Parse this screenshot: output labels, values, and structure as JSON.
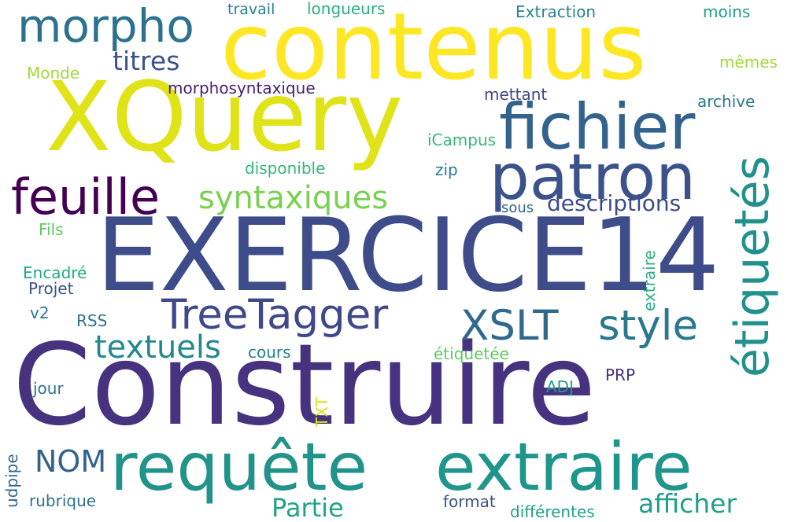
{
  "words": {
    "construire": {
      "text": "Construire",
      "color": "#46327e"
    },
    "exercice14": {
      "text": "EXERCICE14",
      "color": "#3e4c8a"
    },
    "contenus": {
      "text": "contenus",
      "color": "#fde725"
    },
    "xquery": {
      "text": "XQuery",
      "color": "#dfe318"
    },
    "requete": {
      "text": "requête",
      "color": "#22938b"
    },
    "extraire": {
      "text": "extraire",
      "color": "#1f968b"
    },
    "fichier": {
      "text": "fichier",
      "color": "#33638d"
    },
    "patron": {
      "text": "patron",
      "color": "#3b528b"
    },
    "morpho": {
      "text": "morpho",
      "color": "#2c728e"
    },
    "feuille": {
      "text": "feuille",
      "color": "#440154"
    },
    "treetagger": {
      "text": "TreeTagger",
      "color": "#3f4889"
    },
    "etiquetes": {
      "text": "étiquetés",
      "color": "#21918c"
    },
    "xslt": {
      "text": "XSLT",
      "color": "#31688e"
    },
    "style": {
      "text": "style",
      "color": "#2a788e"
    },
    "syntaxiques": {
      "text": "syntaxiques",
      "color": "#7ad151"
    },
    "textuels": {
      "text": "textuels",
      "color": "#23898e"
    },
    "titres": {
      "text": "titres",
      "color": "#3b528b"
    },
    "nom": {
      "text": "NOM",
      "color": "#33638d"
    },
    "afficher": {
      "text": "afficher",
      "color": "#1f9e89"
    },
    "partie": {
      "text": "Partie",
      "color": "#20a486"
    },
    "descriptions": {
      "text": "descriptions",
      "color": "#3e4a89"
    },
    "morphosyntaxique": {
      "text": "morphosyntaxique",
      "color": "#482173"
    },
    "travail": {
      "text": "travail",
      "color": "#26828e"
    },
    "longueurs": {
      "text": "longueurs",
      "color": "#2ab07f"
    },
    "extraction": {
      "text": "Extraction",
      "color": "#25858e"
    },
    "moins": {
      "text": "moins",
      "color": "#1f9e89"
    },
    "memes": {
      "text": "mêmes",
      "color": "#a0da39"
    },
    "monde": {
      "text": "Monde",
      "color": "#a0da39"
    },
    "mettant": {
      "text": "mettant",
      "color": "#414487"
    },
    "archive": {
      "text": "archive",
      "color": "#2a788e"
    },
    "icampus": {
      "text": "iCampus",
      "color": "#35b779"
    },
    "disponible": {
      "text": "disponible",
      "color": "#35b779"
    },
    "zip": {
      "text": "zip",
      "color": "#2a788e"
    },
    "sous": {
      "text": "sous",
      "color": "#33638d"
    },
    "fils": {
      "text": "Fils",
      "color": "#5ec962"
    },
    "encadre": {
      "text": "Encadré",
      "color": "#22a884"
    },
    "projet": {
      "text": "Projet",
      "color": "#3b528b"
    },
    "v2": {
      "text": "v2",
      "color": "#2a788e"
    },
    "rss": {
      "text": "RSS",
      "color": "#2c728e"
    },
    "cours": {
      "text": "cours",
      "color": "#26828e"
    },
    "etiquetee": {
      "text": "étiquetée",
      "color": "#5ec962"
    },
    "extraire_small": {
      "text": "extraire",
      "color": "#2ab07f"
    },
    "jour": {
      "text": "jour",
      "color": "#2c728e"
    },
    "adj": {
      "text": "ADJ",
      "color": "#1f9e89"
    },
    "prp": {
      "text": "PRP",
      "color": "#46327e"
    },
    "txt": {
      "text": "TXT",
      "color": "#d8e219"
    },
    "udpipe": {
      "text": "udpipe",
      "color": "#31688e"
    },
    "rubrique": {
      "text": "rubrique",
      "color": "#2c728e"
    },
    "format": {
      "text": "format",
      "color": "#3b528b"
    },
    "differentes": {
      "text": "différentes",
      "color": "#1fa188"
    }
  }
}
